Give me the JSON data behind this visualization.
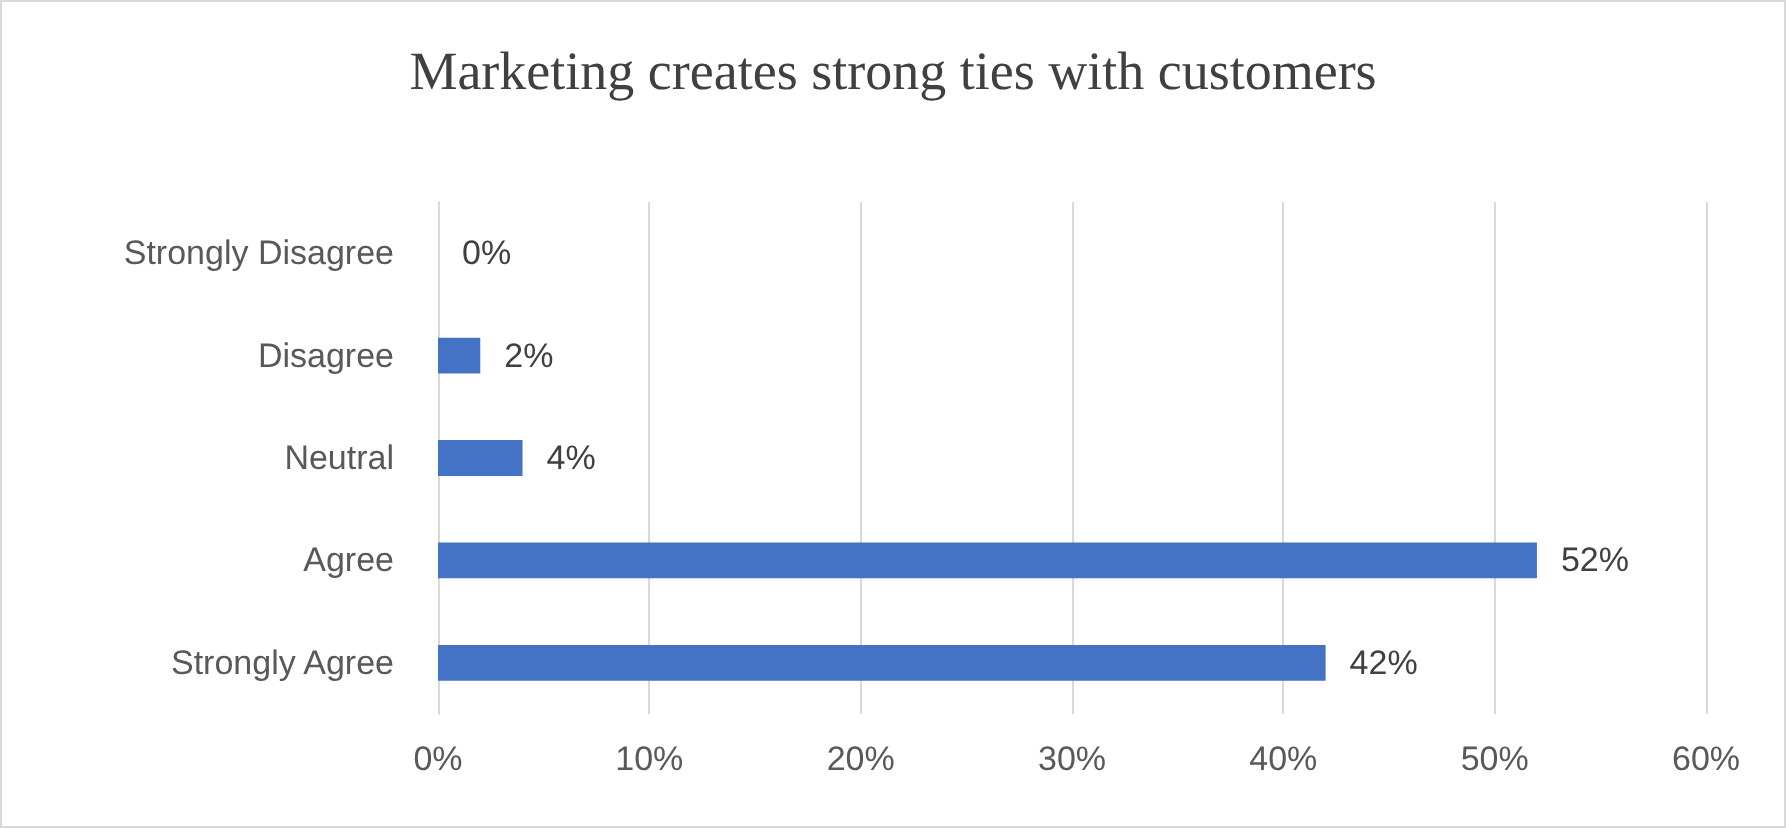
{
  "chart_data": {
    "type": "bar",
    "orientation": "horizontal",
    "title": "Marketing creates strong ties with customers",
    "categories": [
      "Strongly Disagree",
      "Disagree",
      "Neutral",
      "Agree",
      "Strongly Agree"
    ],
    "values": [
      0,
      2,
      4,
      52,
      42
    ],
    "value_labels": [
      "0%",
      "2%",
      "4%",
      "52%",
      "42%"
    ],
    "color": "#4472c4",
    "xlim": [
      0,
      60
    ],
    "xticks": [
      {
        "value": 0,
        "label": "0%"
      },
      {
        "value": 10,
        "label": "10%"
      },
      {
        "value": 20,
        "label": "20%"
      },
      {
        "value": 30,
        "label": "30%"
      },
      {
        "value": 40,
        "label": "40%"
      },
      {
        "value": 50,
        "label": "50%"
      },
      {
        "value": 60,
        "label": "60%"
      }
    ],
    "grid": "x"
  }
}
